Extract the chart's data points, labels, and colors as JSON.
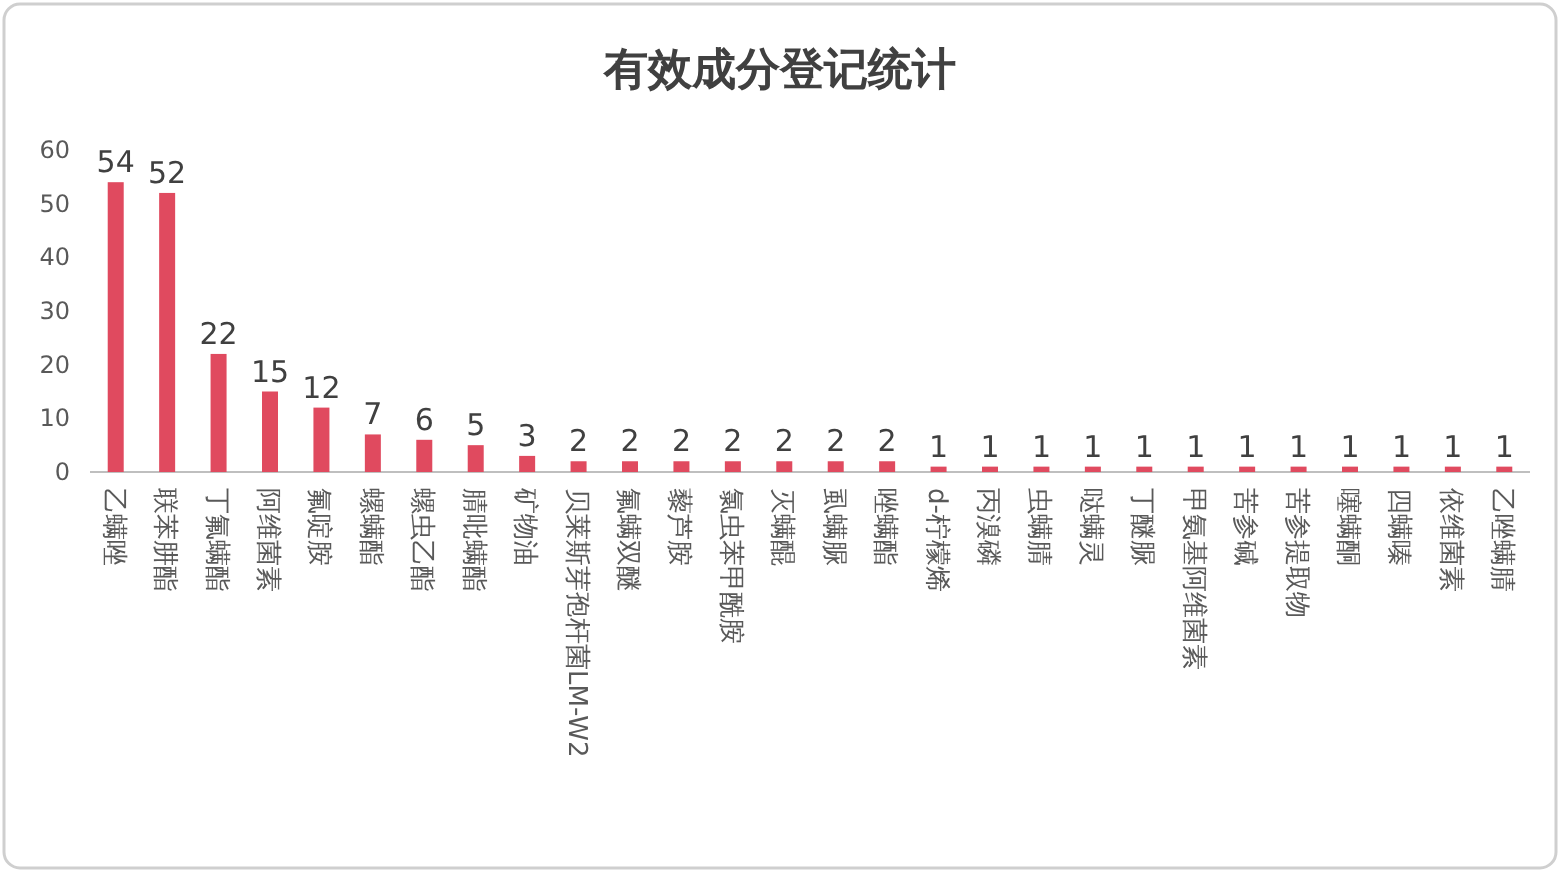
{
  "chart_data": {
    "type": "bar",
    "title": "有效成分登记统计",
    "categories": [
      "乙螨唑",
      "联苯肼酯",
      "丁氟螨酯",
      "阿维菌素",
      "氟啶胺",
      "螺螨酯",
      "螺虫乙酯",
      "腈吡螨酯",
      "矿物油",
      "贝莱斯芽孢杆菌LM-W2",
      "氟螨双醚",
      "藜芦胺",
      "氯虫苯甲酰胺",
      "灭螨醌",
      "虱螨脲",
      "唑螨酯",
      "d-柠檬烯",
      "丙溴磷",
      "虫螨腈",
      "哒螨灵",
      "丁醚脲",
      "甲氨基阿维菌素",
      "苦参碱",
      "苦参提取物",
      "噻螨酮",
      "四螨嗪",
      "依维菌素",
      "乙唑螨腈"
    ],
    "values": [
      54,
      52,
      22,
      15,
      12,
      7,
      6,
      5,
      3,
      2,
      2,
      2,
      2,
      2,
      2,
      2,
      1,
      1,
      1,
      1,
      1,
      1,
      1,
      1,
      1,
      1,
      1,
      1
    ],
    "color": "#e04a5f",
    "ylim": [
      0,
      60
    ],
    "yticks": [
      0,
      10,
      20,
      30,
      40,
      50,
      60
    ],
    "grid": false,
    "data_labels": true
  }
}
